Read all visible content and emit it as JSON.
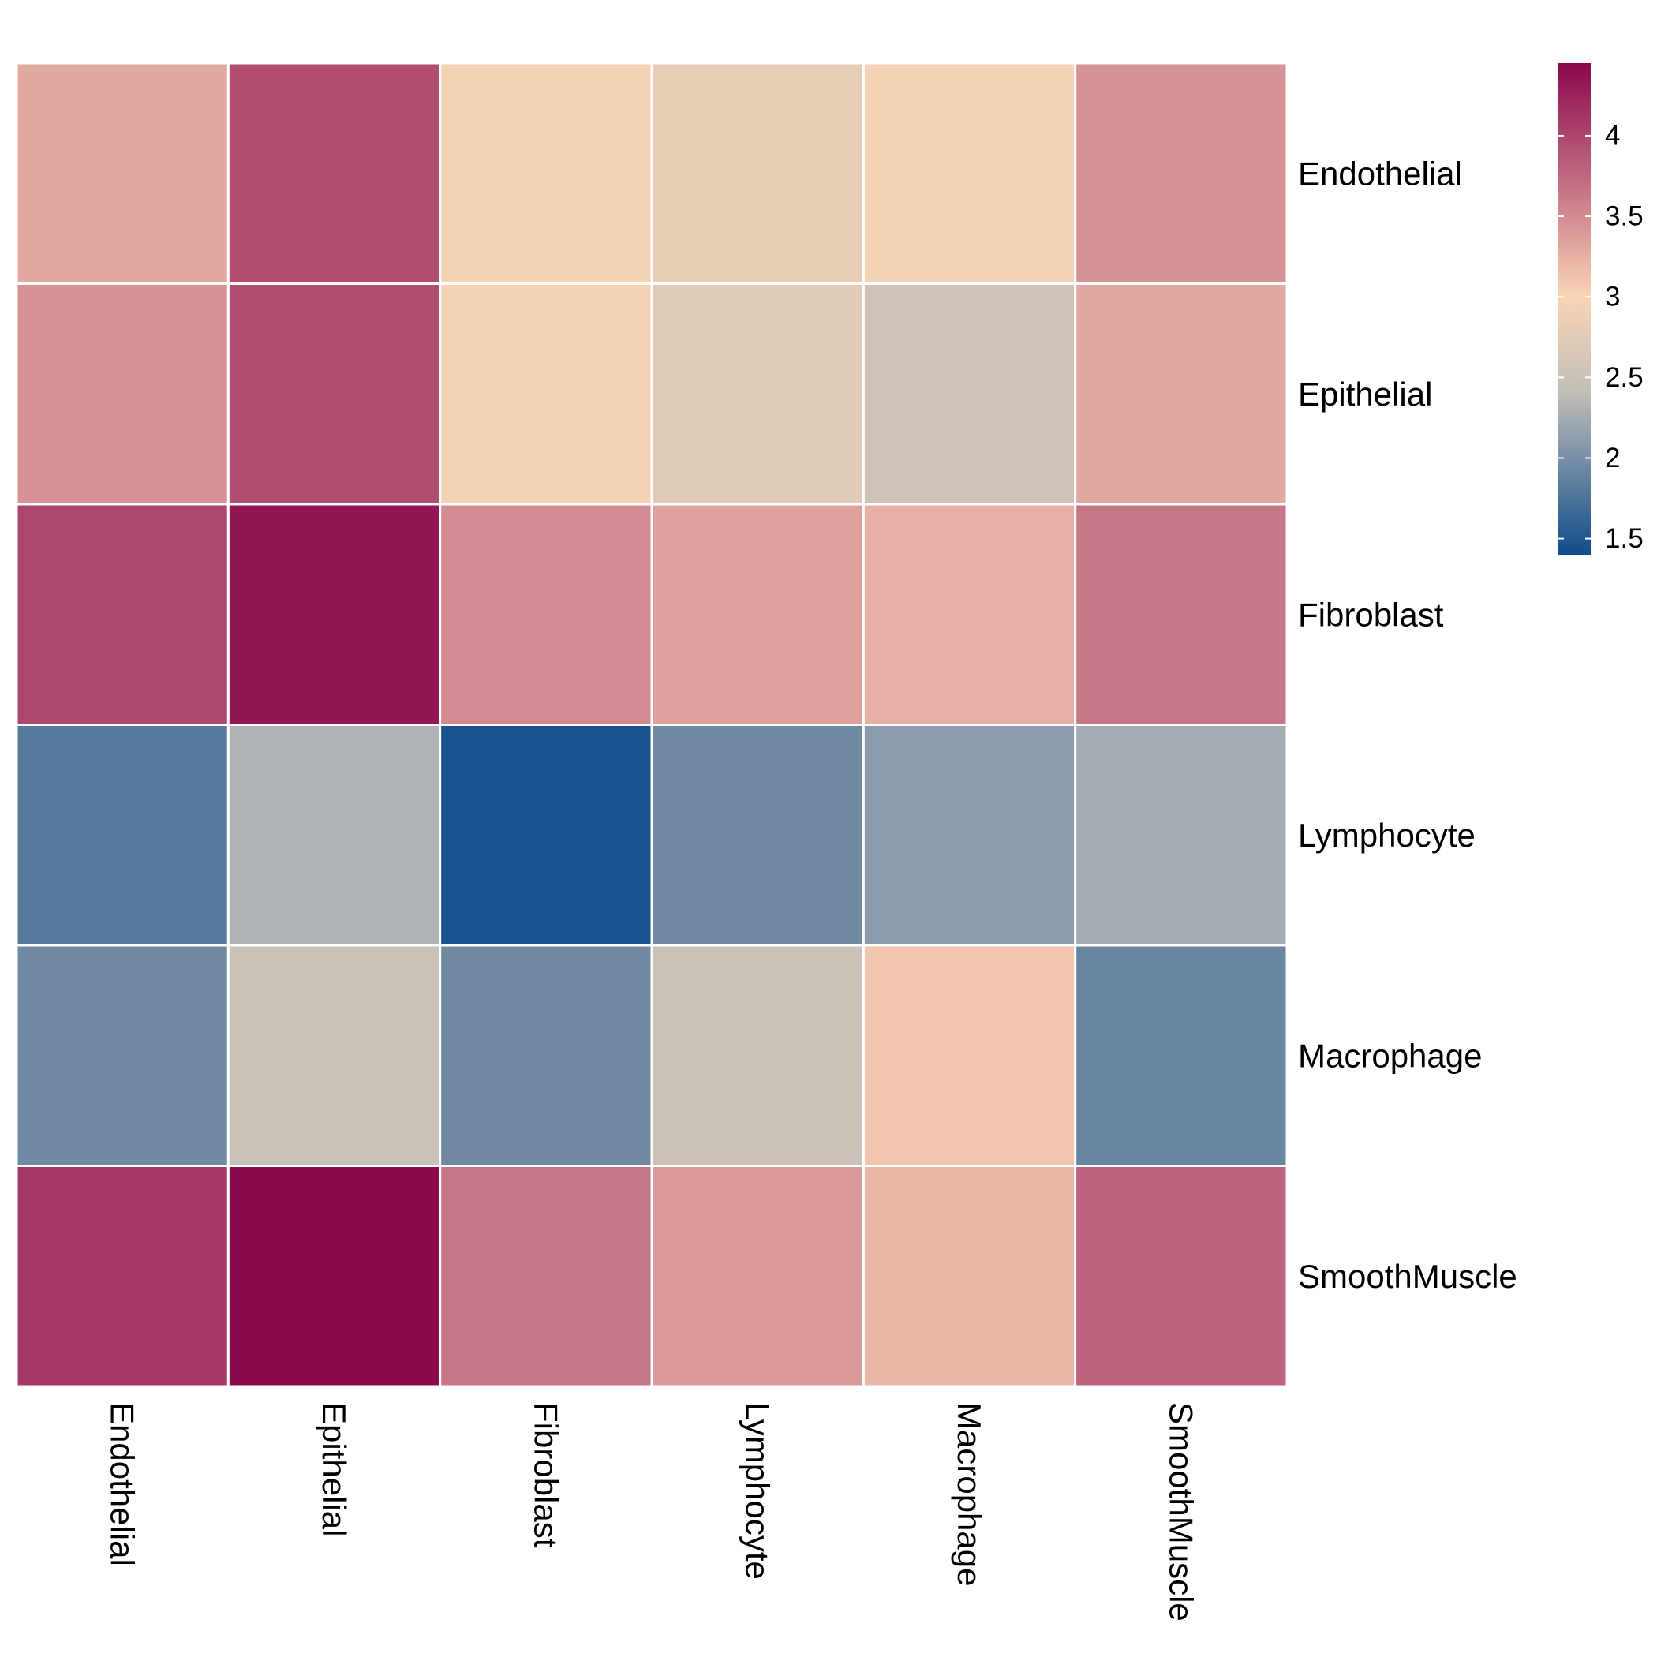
{
  "chart_data": {
    "type": "heatmap",
    "rows": [
      "Endothelial",
      "Epithelial",
      "Fibroblast",
      "Lymphocyte",
      "Macrophage",
      "SmoothMuscle"
    ],
    "columns": [
      "Endothelial",
      "Epithelial",
      "Fibroblast",
      "Lymphocyte",
      "Macrophage",
      "SmoothMuscle"
    ],
    "values": [
      [
        3.3,
        3.95,
        2.95,
        2.8,
        2.95,
        3.45
      ],
      [
        3.45,
        3.95,
        2.95,
        2.75,
        2.55,
        3.3
      ],
      [
        4.0,
        4.35,
        3.5,
        3.35,
        3.25,
        3.65
      ],
      [
        1.8,
        2.3,
        1.45,
        1.95,
        2.1,
        2.25
      ],
      [
        1.95,
        2.5,
        1.95,
        2.5,
        3.1,
        1.9
      ],
      [
        4.1,
        4.45,
        3.65,
        3.4,
        3.2,
        3.8
      ]
    ],
    "colorbar": {
      "min": 1.4,
      "max": 4.45,
      "ticks": [
        1.5,
        2,
        2.5,
        3,
        3.5,
        4
      ],
      "tick_labels": [
        "1.5",
        "2",
        "2.5",
        "3",
        "3.5",
        "4"
      ],
      "stops": [
        {
          "value": 1.4,
          "color": "#0f4c8c"
        },
        {
          "value": 2.4,
          "color": "#c0bdb8"
        },
        {
          "value": 3.0,
          "color": "#fad5b5"
        },
        {
          "value": 3.5,
          "color": "#d28b92"
        },
        {
          "value": 4.45,
          "color": "#8b084d"
        }
      ]
    },
    "grid": true,
    "grid_color": "#ffffff",
    "legend_position": "right"
  }
}
